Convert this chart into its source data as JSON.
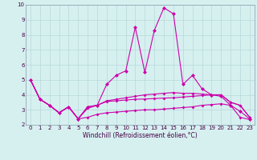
{
  "xlabel": "Windchill (Refroidissement éolien,°C)",
  "background_color": "#d6f0f0",
  "grid_color": "#b8d8d8",
  "line_color": "#cc00aa",
  "xlim": [
    -0.5,
    23.5
  ],
  "ylim": [
    2,
    10
  ],
  "yticks": [
    2,
    3,
    4,
    5,
    6,
    7,
    8,
    9,
    10
  ],
  "xticks": [
    0,
    1,
    2,
    3,
    4,
    5,
    6,
    7,
    8,
    9,
    10,
    11,
    12,
    13,
    14,
    15,
    16,
    17,
    18,
    19,
    20,
    21,
    22,
    23
  ],
  "s1": [
    5.0,
    3.7,
    3.3,
    2.8,
    3.2,
    2.4,
    2.5,
    2.7,
    2.8,
    2.85,
    2.9,
    2.95,
    3.0,
    3.0,
    3.05,
    3.1,
    3.15,
    3.2,
    3.3,
    3.35,
    3.4,
    3.3,
    2.5,
    2.35
  ],
  "s2": [
    5.0,
    3.7,
    3.3,
    2.8,
    3.2,
    2.4,
    3.1,
    3.3,
    3.55,
    3.6,
    3.65,
    3.7,
    3.72,
    3.75,
    3.78,
    3.8,
    3.85,
    3.9,
    3.95,
    4.0,
    4.0,
    3.5,
    3.3,
    2.5
  ],
  "s3": [
    5.0,
    3.7,
    3.3,
    2.8,
    3.2,
    2.4,
    3.2,
    3.3,
    4.7,
    5.3,
    5.6,
    8.5,
    5.5,
    8.3,
    9.8,
    9.4,
    4.7,
    5.3,
    4.4,
    4.0,
    3.9,
    3.3,
    2.9,
    2.4
  ],
  "s4": [
    5.0,
    3.7,
    3.3,
    2.8,
    3.2,
    2.4,
    3.2,
    3.3,
    3.6,
    3.7,
    3.8,
    3.9,
    4.0,
    4.05,
    4.1,
    4.15,
    4.1,
    4.1,
    4.05,
    4.0,
    4.0,
    3.5,
    3.3,
    2.5
  ],
  "tick_fontsize": 5,
  "xlabel_fontsize": 5.5,
  "tick_color": "#440044",
  "spine_color": "#8899aa"
}
